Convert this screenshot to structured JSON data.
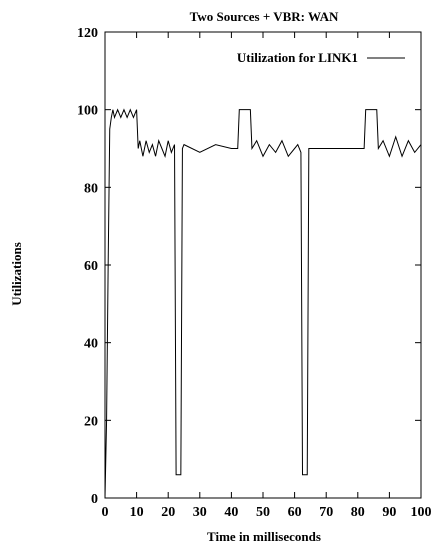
{
  "chart_data": {
    "type": "line",
    "title": "Two Sources + VBR: WAN",
    "xlabel": "Time in milliseconds",
    "ylabel": "Utilizations",
    "xlim": [
      0,
      100
    ],
    "ylim": [
      0,
      120
    ],
    "xticks": [
      0,
      10,
      20,
      30,
      40,
      50,
      60,
      70,
      80,
      90,
      100
    ],
    "yticks": [
      0,
      20,
      40,
      60,
      80,
      100,
      120
    ],
    "grid": false,
    "legend_position": "top-right",
    "series": [
      {
        "name": "Utilization for LINK1",
        "color": "#000000",
        "x": [
          0,
          0.5,
          1,
          1.5,
          2,
          2.5,
          3,
          4,
          5,
          6,
          7,
          8,
          9,
          10,
          10.5,
          11,
          12,
          13,
          14,
          15,
          16,
          17,
          18,
          19,
          20,
          21,
          22,
          22.5,
          24,
          24.5,
          25,
          30,
          35,
          40,
          42,
          42.5,
          46,
          46.5,
          48,
          50,
          52,
          54,
          56,
          58,
          60,
          61,
          62,
          62.5,
          64,
          64.5,
          65,
          70,
          75,
          80,
          82,
          82.5,
          86,
          86.5,
          88,
          90,
          92,
          94,
          96,
          98,
          100
        ],
        "y": [
          0,
          20,
          60,
          95,
          98,
          100,
          98,
          100,
          98,
          100,
          98,
          100,
          98,
          100,
          90,
          92,
          88,
          92,
          89,
          91,
          88,
          92,
          90,
          88,
          92,
          89,
          91,
          6,
          6,
          90,
          91,
          89,
          91,
          90,
          90,
          100,
          100,
          90,
          92,
          88,
          91,
          89,
          92,
          88,
          90,
          91,
          89,
          6,
          6,
          90,
          90,
          90,
          90,
          90,
          90,
          100,
          100,
          90,
          92,
          88,
          93,
          88,
          92,
          89,
          91
        ]
      }
    ]
  }
}
